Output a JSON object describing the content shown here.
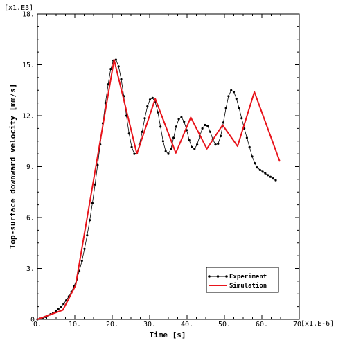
{
  "chart_data": {
    "type": "line",
    "xlabel": "Time [s]",
    "ylabel": "Top-surface downward velocity [mm/s]",
    "x_multiplier": "[x1.E-6]",
    "y_multiplier": "[x1.E3]",
    "xlim": [
      0,
      70
    ],
    "ylim": [
      0,
      18
    ],
    "x_ticks": [
      0,
      10,
      20,
      30,
      40,
      50,
      60,
      70
    ],
    "x_tick_labels": [
      "0.",
      "10.",
      "20.",
      "30.",
      "40.",
      "50.",
      "60.",
      "70."
    ],
    "y_ticks": [
      0,
      3,
      6,
      9,
      12,
      15,
      18
    ],
    "y_tick_labels": [
      "0",
      "3.",
      "6.",
      "9.",
      "12.",
      "15.",
      "18."
    ],
    "grid": false,
    "legend_position": "bottom-right",
    "series": [
      {
        "name": "Experiment",
        "color": "#000000",
        "marker": "dot",
        "x": [
          0,
          0.7,
          1.4,
          2.1,
          2.8,
          3.5,
          4.2,
          4.9,
          5.6,
          6.3,
          7.0,
          7.7,
          8.4,
          9.1,
          9.8,
          10.5,
          11.2,
          11.9,
          12.6,
          13.3,
          14.0,
          14.7,
          15.4,
          16.1,
          16.8,
          17.5,
          18.2,
          18.9,
          19.6,
          20.3,
          21.0,
          21.7,
          22.4,
          23.1,
          23.8,
          24.5,
          25.2,
          25.9,
          26.6,
          27.3,
          28.0,
          28.7,
          29.4,
          30.1,
          30.8,
          31.5,
          32.2,
          32.9,
          33.6,
          34.3,
          35.0,
          35.7,
          36.4,
          37.1,
          37.8,
          38.5,
          39.2,
          39.9,
          40.6,
          41.3,
          42.0,
          42.7,
          43.4,
          44.1,
          44.8,
          45.5,
          46.2,
          46.9,
          47.6,
          48.3,
          49.0,
          49.7,
          50.4,
          51.1,
          51.8,
          52.5,
          53.2,
          53.9,
          54.6,
          55.3,
          56.0,
          56.7,
          57.4,
          58.1,
          58.8,
          59.5,
          60.2,
          60.9,
          61.6,
          62.3,
          63.0,
          63.7
        ],
        "y": [
          0,
          0.05,
          0.1,
          0.15,
          0.22,
          0.3,
          0.38,
          0.48,
          0.6,
          0.75,
          0.92,
          1.12,
          1.35,
          1.62,
          1.95,
          2.35,
          2.85,
          3.45,
          4.15,
          4.95,
          5.85,
          6.85,
          7.95,
          9.1,
          10.3,
          11.55,
          12.75,
          13.85,
          14.75,
          15.25,
          15.3,
          14.9,
          14.15,
          13.15,
          12.0,
          10.95,
          10.15,
          9.75,
          9.8,
          10.3,
          11.05,
          11.85,
          12.55,
          12.95,
          13.05,
          12.8,
          12.2,
          11.35,
          10.5,
          9.9,
          9.75,
          10.05,
          10.7,
          11.35,
          11.8,
          11.9,
          11.65,
          11.15,
          10.55,
          10.15,
          10.05,
          10.3,
          10.8,
          11.25,
          11.45,
          11.4,
          11.05,
          10.6,
          10.3,
          10.35,
          10.8,
          11.6,
          12.45,
          13.15,
          13.5,
          13.4,
          13.0,
          12.45,
          11.85,
          11.25,
          10.7,
          10.15,
          9.6,
          9.2,
          8.95,
          8.8,
          8.7,
          8.6,
          8.5,
          8.4,
          8.3,
          8.2
        ]
      },
      {
        "name": "Simulation",
        "color": "#e8141b",
        "marker": "none",
        "x": [
          0,
          6.8,
          10.2,
          20.5,
          26.6,
          31.5,
          37.0,
          41.0,
          45.3,
          49.5,
          53.5,
          58.0,
          64.8
        ],
        "y": [
          0,
          0.55,
          2.0,
          15.3,
          9.75,
          13.0,
          9.8,
          11.9,
          10.05,
          11.45,
          10.2,
          13.4,
          9.3
        ]
      }
    ]
  }
}
